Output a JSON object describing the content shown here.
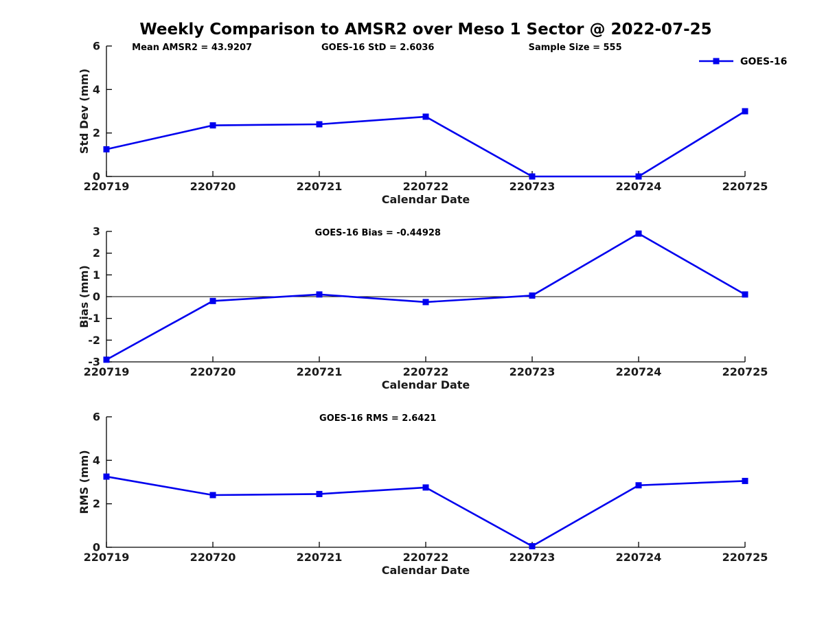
{
  "figure_title": "Weekly Comparison to AMSR2 over Meso 1 Sector @ 2022-07-25",
  "series_color": "#0000EE",
  "axis_color": "#000000",
  "chart_data": [
    {
      "type": "line",
      "name": "std-dev-chart",
      "annotations": [
        "Mean AMSR2 = 43.9207",
        "GOES-16 StD = 2.6036",
        "Sample Size = 555"
      ],
      "categories": [
        "220719",
        "220720",
        "220721",
        "220722",
        "220723",
        "220724",
        "220725"
      ],
      "series": [
        {
          "name": "GOES-16",
          "values": [
            1.25,
            2.35,
            2.4,
            2.75,
            0,
            0,
            3.0
          ]
        }
      ],
      "xlabel": "Calendar Date",
      "ylabel": "Std Dev (mm)",
      "ylim": [
        0,
        6
      ],
      "yticks": [
        0,
        2,
        4,
        6
      ],
      "grid": false,
      "zero_line": false,
      "legend": {
        "entries": [
          "GOES-16"
        ],
        "position": "top-right"
      }
    },
    {
      "type": "line",
      "name": "bias-chart",
      "annotations": [
        "GOES-16 Bias  = -0.44928"
      ],
      "categories": [
        "220719",
        "220720",
        "220721",
        "220722",
        "220723",
        "220724",
        "220725"
      ],
      "series": [
        {
          "name": "GOES-16",
          "values": [
            -2.9,
            -0.2,
            0.1,
            -0.25,
            0.05,
            2.9,
            0.1
          ]
        }
      ],
      "xlabel": "Calendar Date",
      "ylabel": "Bias (mm)",
      "ylim": [
        -3,
        3
      ],
      "yticks": [
        -3,
        -2,
        -1,
        0,
        1,
        2,
        3
      ],
      "grid": false,
      "zero_line": true,
      "legend": null
    },
    {
      "type": "line",
      "name": "rms-chart",
      "annotations": [
        "GOES-16 RMS = 2.6421"
      ],
      "categories": [
        "220719",
        "220720",
        "220721",
        "220722",
        "220723",
        "220724",
        "220725"
      ],
      "series": [
        {
          "name": "GOES-16",
          "values": [
            3.25,
            2.4,
            2.45,
            2.75,
            0.05,
            2.85,
            3.05
          ]
        }
      ],
      "xlabel": "Calendar Date",
      "ylabel": "RMS (mm)",
      "ylim": [
        0,
        6
      ],
      "yticks": [
        0,
        2,
        4,
        6
      ],
      "grid": false,
      "zero_line": false,
      "legend": null
    }
  ]
}
